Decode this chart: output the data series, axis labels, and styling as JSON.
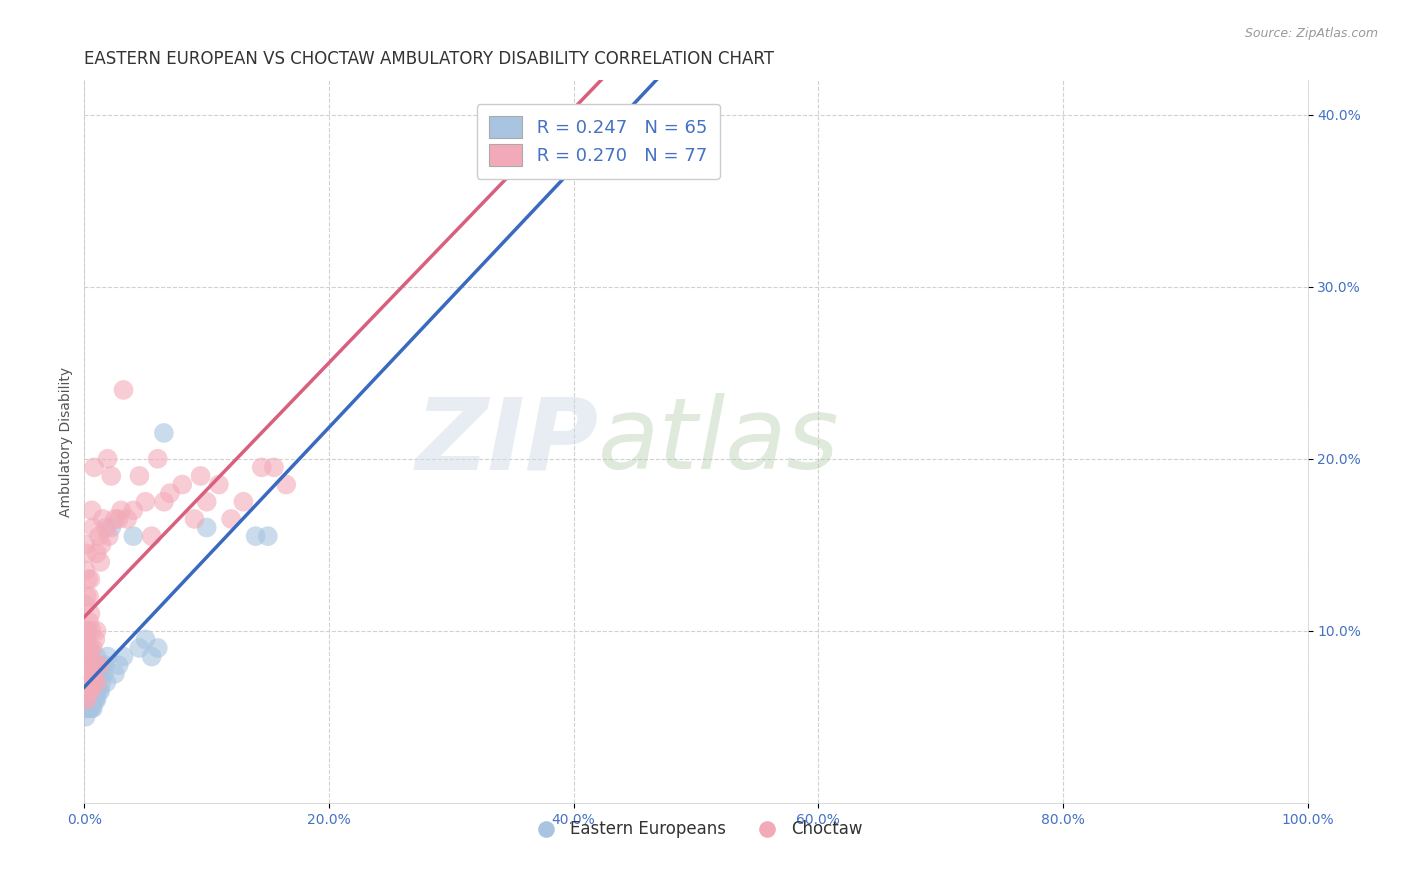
{
  "title": "EASTERN EUROPEAN VS CHOCTAW AMBULATORY DISABILITY CORRELATION CHART",
  "source": "Source: ZipAtlas.com",
  "xlabel_label": "Eastern Europeans",
  "ylabel_label": "Ambulatory Disability",
  "choctaw_label": "Choctaw",
  "blue_R": "R = 0.247",
  "blue_N": "N = 65",
  "pink_R": "R = 0.270",
  "pink_N": "N = 77",
  "xlim": [
    0.0,
    1.0
  ],
  "ylim": [
    0.0,
    0.42
  ],
  "xticks": [
    0.0,
    0.2,
    0.4,
    0.6,
    0.8,
    1.0
  ],
  "yticks": [
    0.1,
    0.2,
    0.3,
    0.4
  ],
  "xtick_labels": [
    "0.0%",
    "20.0%",
    "40.0%",
    "60.0%",
    "80.0%",
    "100.0%"
  ],
  "ytick_labels": [
    "10.0%",
    "20.0%",
    "30.0%",
    "40.0%"
  ],
  "blue_color": "#a8c4e0",
  "pink_color": "#f2aab8",
  "blue_line_color": "#3a6abf",
  "pink_line_color": "#d95f7f",
  "background_color": "#ffffff",
  "grid_color": "#cccccc",
  "blue_x": [
    0.001,
    0.001,
    0.001,
    0.001,
    0.001,
    0.001,
    0.001,
    0.001,
    0.001,
    0.001,
    0.002,
    0.002,
    0.002,
    0.002,
    0.002,
    0.002,
    0.003,
    0.003,
    0.003,
    0.003,
    0.004,
    0.004,
    0.004,
    0.004,
    0.005,
    0.005,
    0.005,
    0.005,
    0.005,
    0.006,
    0.006,
    0.006,
    0.007,
    0.007,
    0.007,
    0.008,
    0.008,
    0.009,
    0.009,
    0.01,
    0.01,
    0.01,
    0.01,
    0.012,
    0.012,
    0.013,
    0.014,
    0.014,
    0.016,
    0.017,
    0.018,
    0.019,
    0.022,
    0.025,
    0.028,
    0.032,
    0.04,
    0.045,
    0.05,
    0.055,
    0.06,
    0.065,
    0.1,
    0.14,
    0.15
  ],
  "blue_y": [
    0.055,
    0.06,
    0.065,
    0.07,
    0.075,
    0.08,
    0.085,
    0.09,
    0.095,
    0.05,
    0.055,
    0.06,
    0.065,
    0.07,
    0.08,
    0.09,
    0.055,
    0.065,
    0.075,
    0.085,
    0.055,
    0.06,
    0.07,
    0.08,
    0.055,
    0.06,
    0.065,
    0.075,
    0.085,
    0.055,
    0.065,
    0.075,
    0.055,
    0.065,
    0.075,
    0.06,
    0.07,
    0.06,
    0.07,
    0.06,
    0.065,
    0.075,
    0.085,
    0.065,
    0.075,
    0.065,
    0.07,
    0.08,
    0.075,
    0.08,
    0.07,
    0.085,
    0.16,
    0.075,
    0.08,
    0.085,
    0.155,
    0.09,
    0.095,
    0.085,
    0.09,
    0.215,
    0.16,
    0.155,
    0.155
  ],
  "pink_x": [
    0.001,
    0.001,
    0.001,
    0.001,
    0.001,
    0.001,
    0.001,
    0.001,
    0.001,
    0.002,
    0.002,
    0.002,
    0.002,
    0.002,
    0.002,
    0.002,
    0.003,
    0.003,
    0.003,
    0.003,
    0.003,
    0.004,
    0.004,
    0.004,
    0.004,
    0.004,
    0.005,
    0.005,
    0.005,
    0.005,
    0.005,
    0.006,
    0.006,
    0.006,
    0.006,
    0.007,
    0.007,
    0.007,
    0.008,
    0.008,
    0.009,
    0.009,
    0.01,
    0.01,
    0.01,
    0.01,
    0.012,
    0.012,
    0.013,
    0.014,
    0.015,
    0.018,
    0.019,
    0.02,
    0.022,
    0.025,
    0.028,
    0.03,
    0.032,
    0.035,
    0.04,
    0.045,
    0.05,
    0.055,
    0.06,
    0.065,
    0.07,
    0.08,
    0.09,
    0.095,
    0.1,
    0.11,
    0.12,
    0.13,
    0.145,
    0.155,
    0.165
  ],
  "pink_y": [
    0.06,
    0.065,
    0.07,
    0.08,
    0.09,
    0.1,
    0.115,
    0.135,
    0.15,
    0.06,
    0.07,
    0.08,
    0.09,
    0.1,
    0.12,
    0.145,
    0.065,
    0.075,
    0.085,
    0.1,
    0.13,
    0.065,
    0.075,
    0.09,
    0.105,
    0.12,
    0.065,
    0.075,
    0.09,
    0.11,
    0.13,
    0.07,
    0.08,
    0.1,
    0.17,
    0.075,
    0.09,
    0.16,
    0.08,
    0.195,
    0.07,
    0.095,
    0.07,
    0.08,
    0.1,
    0.145,
    0.08,
    0.155,
    0.14,
    0.15,
    0.165,
    0.16,
    0.2,
    0.155,
    0.19,
    0.165,
    0.165,
    0.17,
    0.24,
    0.165,
    0.17,
    0.19,
    0.175,
    0.155,
    0.2,
    0.175,
    0.18,
    0.185,
    0.165,
    0.19,
    0.175,
    0.185,
    0.165,
    0.175,
    0.195,
    0.195,
    0.185
  ],
  "watermark_zip": "ZIP",
  "watermark_atlas": "atlas",
  "title_fontsize": 12,
  "axis_label_fontsize": 10,
  "tick_fontsize": 10,
  "legend_fontsize": 13
}
